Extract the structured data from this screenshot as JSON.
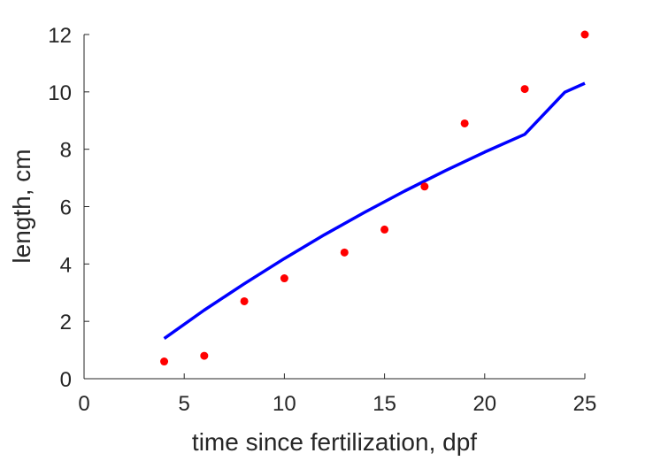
{
  "chart_data": {
    "type": "scatter",
    "xlabel": "time since fertilization, dpf",
    "ylabel": "length, cm",
    "xlim": [
      0,
      25
    ],
    "ylim": [
      0,
      12
    ],
    "xticks": [
      0,
      5,
      10,
      15,
      20,
      25
    ],
    "yticks": [
      0,
      2,
      4,
      6,
      8,
      10,
      12
    ],
    "grid": false,
    "series": [
      {
        "type": "scatter",
        "color": "#ff0000",
        "x": [
          4,
          6,
          8,
          10,
          13,
          15,
          17,
          19,
          22,
          25
        ],
        "y": [
          0.6,
          0.8,
          2.7,
          3.5,
          4.4,
          5.2,
          6.7,
          8.9,
          10.1,
          12.0
        ]
      },
      {
        "type": "line",
        "color": "#0000ff",
        "x": [
          4,
          6,
          8,
          10,
          12,
          14,
          16,
          18,
          20,
          22,
          24,
          25
        ],
        "y": [
          1.4,
          2.39,
          3.31,
          4.19,
          5.02,
          5.8,
          6.54,
          7.24,
          7.9,
          8.52,
          9.99,
          10.3
        ]
      }
    ]
  }
}
